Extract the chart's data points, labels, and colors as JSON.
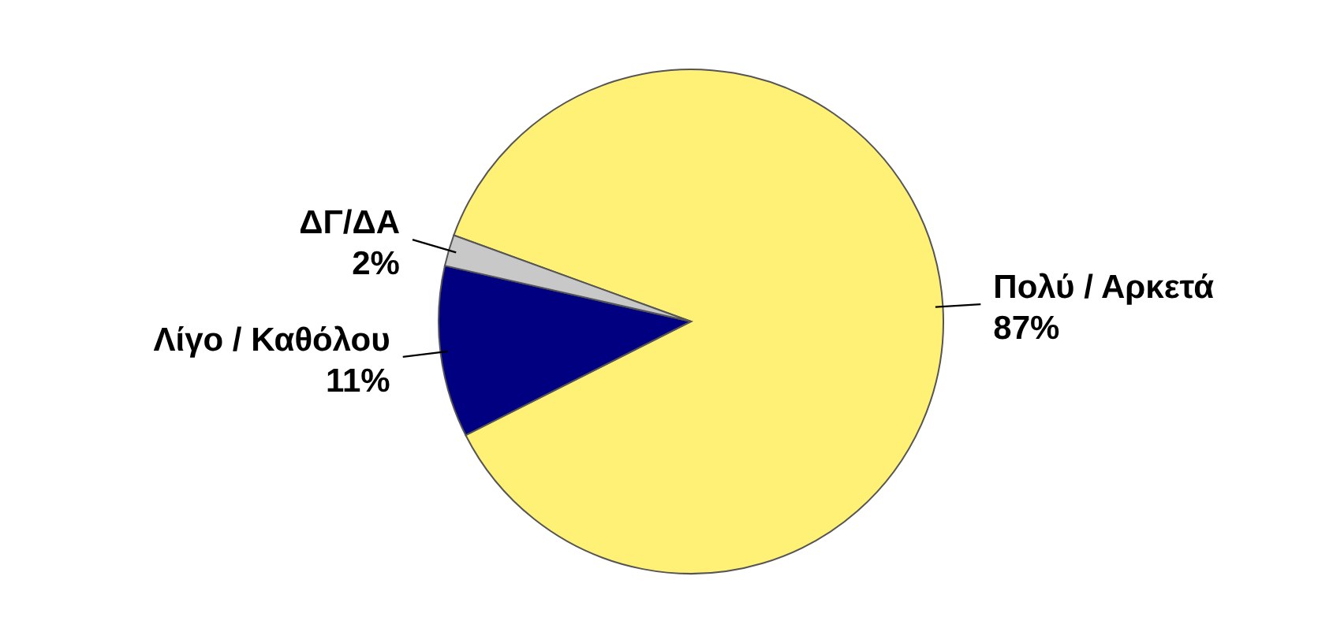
{
  "chart_data": {
    "type": "pie",
    "categories": [
      "Πολύ / Αρκετά",
      "Λίγο / Καθόλου",
      "ΔΓ/ΔΑ"
    ],
    "values": [
      87,
      11,
      2
    ],
    "colors": [
      "#fff176",
      "#000080",
      "#c8c8c8"
    ],
    "value_labels": [
      "87%",
      "11%",
      "2%"
    ],
    "legend": false
  }
}
